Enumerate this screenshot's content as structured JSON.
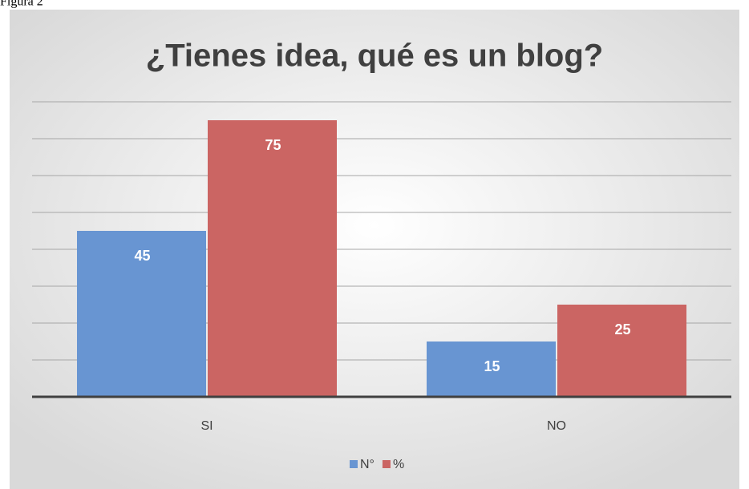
{
  "caption": "Figura 2",
  "chart_data": {
    "type": "bar",
    "title": "¿Tienes idea, qué es un blog?",
    "categories": [
      "SI",
      "NO"
    ],
    "series": [
      {
        "name": "N°",
        "color": "#6895d2",
        "values": [
          45,
          15
        ]
      },
      {
        "name": "%",
        "color": "#cb6563",
        "values": [
          75,
          25
        ]
      }
    ],
    "ylim": [
      0,
      80
    ],
    "yticks": [
      0,
      10,
      20,
      30,
      40,
      50,
      60,
      70,
      80
    ],
    "grid": true,
    "legend": "bottom"
  }
}
